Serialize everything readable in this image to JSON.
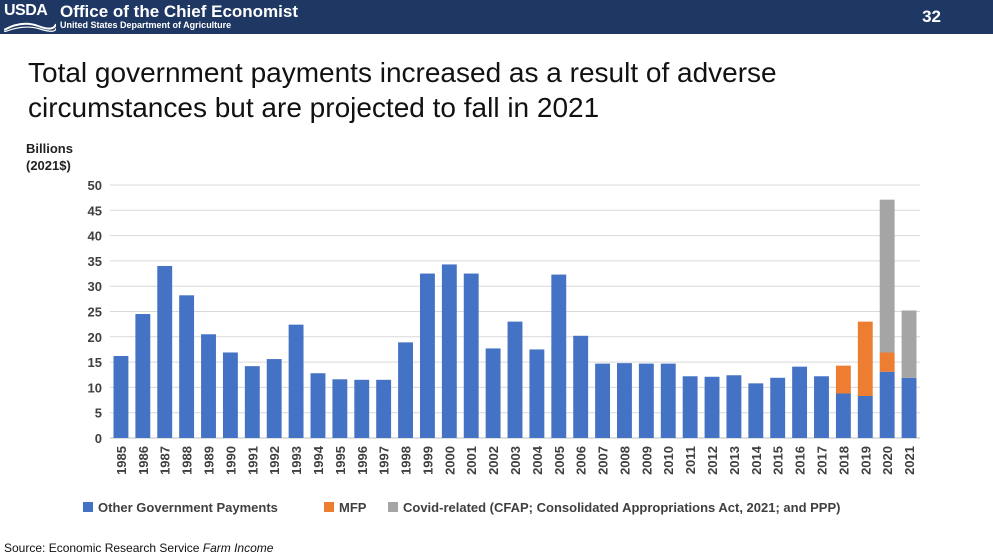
{
  "header": {
    "logo_text": "USDA",
    "title": "Office of the Chief Economist",
    "department": "United States Department of Agriculture",
    "page_number": "32",
    "background_color": "#1f3863"
  },
  "slide": {
    "title": "Total government payments increased as a result of adverse circumstances but are projected to fall in 2021"
  },
  "source": {
    "prefix": "Source: Economic Research Service",
    "publication": "Farm Income"
  },
  "chart_data": {
    "type": "bar",
    "stacked": true,
    "ylabel": "Billions\n(2021$)",
    "ylim": [
      0,
      50
    ],
    "yticks": [
      0,
      5,
      10,
      15,
      20,
      25,
      30,
      35,
      40,
      45,
      50
    ],
    "grid": true,
    "legend_position": "bottom",
    "categories": [
      "1985",
      "1986",
      "1987",
      "1988",
      "1989",
      "1990",
      "1991",
      "1992",
      "1993",
      "1994",
      "1995",
      "1996",
      "1997",
      "1998",
      "1999",
      "2000",
      "2001",
      "2002",
      "2003",
      "2004",
      "2005",
      "2006",
      "2007",
      "2008",
      "2009",
      "2010",
      "2011",
      "2012",
      "2013",
      "2014",
      "2015",
      "2016",
      "2017",
      "2018",
      "2019",
      "2020",
      "2021"
    ],
    "series": [
      {
        "name": "Other Government Payments",
        "color": "#4472c4",
        "values": [
          16.2,
          24.5,
          34.0,
          28.2,
          20.5,
          16.9,
          14.2,
          15.6,
          22.4,
          12.8,
          11.6,
          11.5,
          11.5,
          18.9,
          32.5,
          34.3,
          32.5,
          17.7,
          23.0,
          17.5,
          32.3,
          20.2,
          14.7,
          14.8,
          14.7,
          14.7,
          12.2,
          12.1,
          12.4,
          10.8,
          11.9,
          14.1,
          12.2,
          8.8,
          8.3,
          13.1,
          11.9
        ]
      },
      {
        "name": "MFP",
        "color": "#ed7d31",
        "values": [
          0,
          0,
          0,
          0,
          0,
          0,
          0,
          0,
          0,
          0,
          0,
          0,
          0,
          0,
          0,
          0,
          0,
          0,
          0,
          0,
          0,
          0,
          0,
          0,
          0,
          0,
          0,
          0,
          0,
          0,
          0,
          0,
          0,
          5.5,
          14.7,
          3.8,
          0
        ]
      },
      {
        "name": "Covid-related (CFAP; Consolidated Appropriations Act, 2021; and PPP)",
        "color": "#a5a5a5",
        "values": [
          0,
          0,
          0,
          0,
          0,
          0,
          0,
          0,
          0,
          0,
          0,
          0,
          0,
          0,
          0,
          0,
          0,
          0,
          0,
          0,
          0,
          0,
          0,
          0,
          0,
          0,
          0,
          0,
          0,
          0,
          0,
          0,
          0,
          0,
          0,
          30.2,
          13.3
        ]
      }
    ]
  }
}
